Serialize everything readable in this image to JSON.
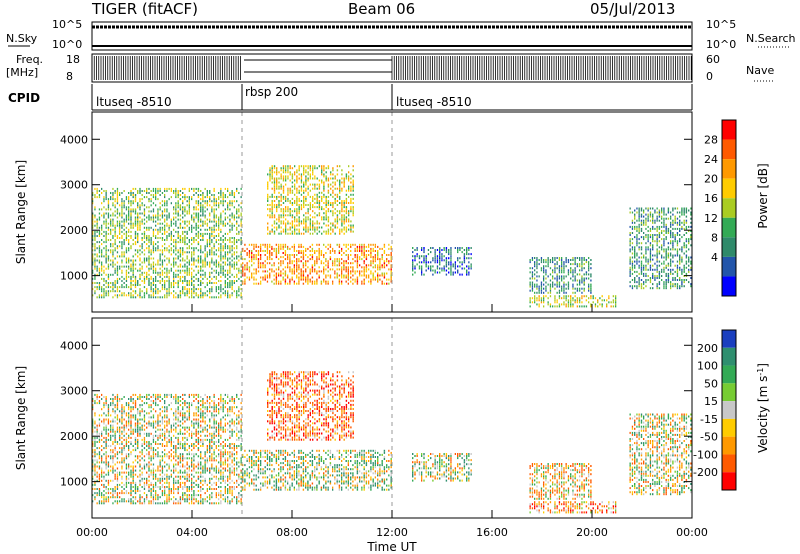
{
  "header": {
    "station": "TIGER (fitACF)",
    "beam": "Beam 06",
    "date": "05/Jul/2013"
  },
  "top_panels": {
    "nsky_label": "N.Sky",
    "nsky_ticks": [
      "10^5",
      "10^0"
    ],
    "nsearch_label": "N.Search",
    "nsearch_ticks": [
      "10^5",
      "10^0"
    ],
    "freq_label": "Freq.",
    "freq_unit": "[MHz]",
    "freq_ticks": [
      "18",
      "8"
    ],
    "nave_label": "Nave",
    "nave_ticks": [
      "60",
      "0"
    ],
    "cpid_label": "CPID",
    "cpid_segments": [
      {
        "name": "ltuseq -8510",
        "start_h": 0,
        "end_h": 6
      },
      {
        "name": "rbsp 200",
        "start_h": 6,
        "end_h": 12
      },
      {
        "name": "ltuseq -8510",
        "start_h": 12,
        "end_h": 24
      }
    ]
  },
  "colorbars": {
    "power": {
      "label": "Power [dB]",
      "ticks": [
        "28",
        "24",
        "20",
        "16",
        "12",
        "8",
        "4"
      ],
      "colors": [
        "#ff0000",
        "#ff5a00",
        "#ff9900",
        "#ffcc00",
        "#aacc22",
        "#33aa55",
        "#2f8a6a",
        "#2255aa",
        "#0000ff"
      ]
    },
    "velocity": {
      "label": "Velocity [m s",
      "label_sup": "-1",
      "label_end": "]",
      "ticks": [
        "200",
        "100",
        "50",
        "15",
        "-15",
        "-50",
        "-100",
        "-200"
      ],
      "colors": [
        "#1a3fbf",
        "#2f8f6f",
        "#33aa55",
        "#77cc33",
        "#c8c8c8",
        "#ffcc00",
        "#ff9900",
        "#ff5a00",
        "#ff0000"
      ]
    }
  },
  "chart_data": {
    "type": "heatmap",
    "panels": [
      "Power",
      "Velocity"
    ],
    "ylabel": "Slant Range [km]",
    "yticks": [
      "4000",
      "3000",
      "2000",
      "1000"
    ],
    "ylim": [
      200,
      4600
    ],
    "xlabel": "Time UT",
    "xticks": [
      "00:00",
      "04:00",
      "08:00",
      "12:00",
      "16:00",
      "20:00",
      "00:00"
    ],
    "xlim_hours": [
      0,
      24
    ],
    "mode_change_hours": [
      6,
      12
    ],
    "echo_regions": [
      {
        "t0": 0.0,
        "t1": 6.0,
        "r0": 500,
        "r1": 2900,
        "power_db": 14,
        "velocity": 0
      },
      {
        "t0": 6.0,
        "t1": 12.0,
        "r0": 800,
        "r1": 1700,
        "power_db": 24,
        "velocity": 25
      },
      {
        "t0": 7.0,
        "t1": 10.5,
        "r0": 1900,
        "r1": 3400,
        "power_db": 18,
        "velocity": -100
      },
      {
        "t0": 12.8,
        "t1": 15.2,
        "r0": 1000,
        "r1": 1600,
        "power_db": 6,
        "velocity": 10
      },
      {
        "t0": 17.5,
        "t1": 20.0,
        "r0": 600,
        "r1": 1400,
        "power_db": 9,
        "velocity": -40
      },
      {
        "t0": 17.5,
        "t1": 21.0,
        "r0": 300,
        "r1": 550,
        "power_db": 17,
        "velocity": -80
      },
      {
        "t0": 21.5,
        "t1": 24.0,
        "r0": 700,
        "r1": 2500,
        "power_db": 10,
        "velocity": 0
      }
    ]
  }
}
